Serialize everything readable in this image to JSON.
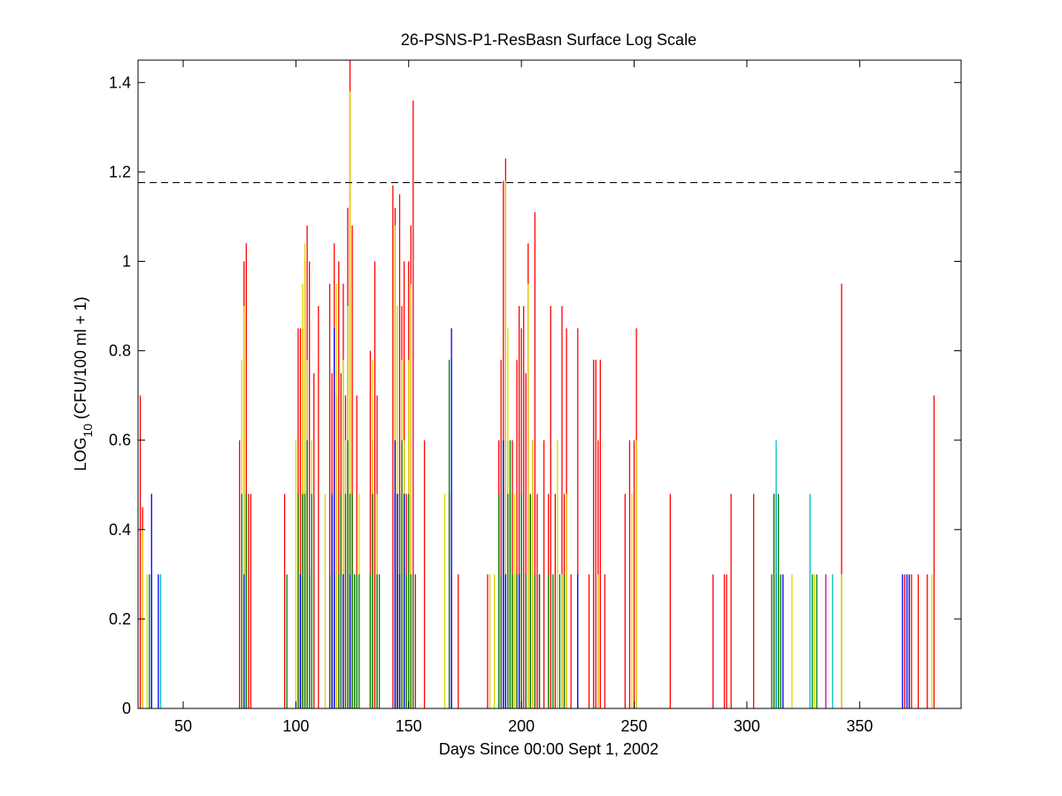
{
  "chart_data": {
    "type": "bar",
    "title": "26-PSNS-P1-ResBasn Surface Log Scale",
    "xlabel": "Days Since 00:00 Sept 1, 2002",
    "ylabel": {
      "prefix": "LOG",
      "sub": "10",
      "suffix": " (CFU/100 ml + 1)"
    },
    "xlim": [
      30,
      395
    ],
    "ylim": [
      0,
      1.45
    ],
    "xticks": [
      50,
      100,
      150,
      200,
      250,
      300,
      350
    ],
    "yticks": [
      0,
      0.2,
      0.4,
      0.6,
      0.8,
      1,
      1.2,
      1.4
    ],
    "ytick_labels": [
      "0",
      "0.2",
      "0.4",
      "0.6",
      "0.8",
      "1",
      "1.2",
      "1.4"
    ],
    "grid": false,
    "reference_line": {
      "y": 1.176,
      "style": "dashed"
    },
    "colors": {
      "red": "#ff0000",
      "yellow": "#d8d800",
      "green": "#008000",
      "blue": "#0000ff",
      "cyan": "#00bfbf",
      "magenta": "#bf00bf"
    },
    "series": [
      {
        "color": "red",
        "x": [
          31,
          32,
          75,
          77,
          78,
          79,
          80,
          95,
          101,
          102,
          103,
          104,
          105,
          106,
          108,
          110,
          115,
          116,
          117,
          118,
          119,
          120,
          121,
          122,
          123,
          124,
          125,
          126,
          127,
          133,
          134,
          135,
          136,
          143,
          144,
          145,
          146,
          147,
          148,
          149,
          150,
          151,
          152,
          153,
          157,
          168,
          172,
          185,
          190,
          191,
          192,
          193,
          194,
          195,
          196,
          197,
          198,
          199,
          200,
          201,
          202,
          203,
          204,
          205,
          206,
          207,
          208,
          210,
          212,
          213,
          215,
          218,
          219,
          220,
          222,
          225,
          230,
          232,
          233,
          234,
          235,
          237,
          246,
          248,
          250,
          251,
          266,
          285,
          290,
          291,
          293,
          303,
          312,
          342,
          370,
          373,
          376,
          380,
          383
        ],
        "y": [
          0.7,
          0.45,
          0.6,
          1.0,
          1.04,
          0.48,
          0.48,
          0.48,
          0.85,
          0.85,
          0.85,
          1.0,
          1.08,
          1.0,
          0.75,
          0.9,
          0.95,
          0.75,
          1.04,
          0.7,
          1.0,
          0.75,
          0.95,
          0.7,
          1.12,
          1.45,
          1.08,
          0.3,
          0.7,
          0.8,
          0.6,
          1.0,
          0.7,
          1.17,
          1.12,
          0.48,
          1.15,
          0.9,
          1.0,
          0.48,
          1.0,
          1.08,
          1.36,
          0.3,
          0.6,
          0.48,
          0.3,
          0.3,
          0.6,
          0.78,
          1.18,
          1.23,
          0.6,
          0.48,
          0.6,
          0.3,
          0.78,
          0.9,
          0.85,
          0.9,
          0.75,
          1.04,
          0.48,
          0.6,
          1.11,
          0.48,
          0.3,
          0.6,
          0.48,
          0.9,
          0.48,
          0.9,
          0.48,
          0.85,
          0.3,
          0.85,
          0.3,
          0.78,
          0.78,
          0.6,
          0.78,
          0.3,
          0.48,
          0.6,
          0.6,
          0.85,
          0.48,
          0.3,
          0.3,
          0.3,
          0.48,
          0.48,
          0.48,
          0.95,
          0.3,
          0.3,
          0.3,
          0.3,
          0.7
        ]
      },
      {
        "color": "yellow",
        "x": [
          32,
          34,
          76,
          77,
          100,
          103,
          104,
          105,
          107,
          113,
          118,
          121,
          122,
          123,
          124,
          125,
          128,
          134,
          136,
          144,
          145,
          147,
          148,
          150,
          151,
          166,
          169,
          186,
          188,
          193,
          194,
          197,
          203,
          205,
          212,
          216,
          218,
          220,
          234,
          249,
          251,
          320,
          328,
          330,
          342,
          382
        ],
        "y": [
          0.4,
          0.3,
          0.78,
          0.9,
          0.6,
          0.95,
          1.04,
          0.78,
          0.6,
          0.48,
          0.95,
          0.78,
          0.6,
          0.9,
          1.38,
          0.3,
          0.48,
          0.78,
          0.48,
          1.08,
          0.9,
          0.78,
          0.6,
          0.78,
          0.95,
          0.48,
          0.78,
          0.3,
          0.3,
          1.18,
          0.85,
          0.48,
          0.95,
          0.6,
          0.3,
          0.6,
          0.3,
          0.48,
          0.3,
          0.48,
          0.6,
          0.3,
          0.3,
          0.3,
          0.3,
          0.3
        ]
      },
      {
        "color": "green",
        "x": [
          35,
          36,
          76,
          78,
          96,
          101,
          102,
          103,
          104,
          105,
          106,
          107,
          115,
          116,
          117,
          119,
          120,
          121,
          122,
          123,
          124,
          125,
          126,
          127,
          128,
          133,
          134,
          136,
          137,
          144,
          145,
          146,
          147,
          148,
          149,
          150,
          151,
          152,
          168,
          169,
          190,
          191,
          192,
          194,
          195,
          196,
          198,
          200,
          202,
          204,
          206,
          208,
          212,
          214,
          217,
          219,
          311,
          312,
          313,
          314,
          315,
          329,
          331
        ],
        "y": [
          0.3,
          0.3,
          0.48,
          0.48,
          0.3,
          0.48,
          0.3,
          0.48,
          0.48,
          0.6,
          0.3,
          0.48,
          0.3,
          0.48,
          0.3,
          0.3,
          0.48,
          0.3,
          0.48,
          0.6,
          0.48,
          0.48,
          0.3,
          0.3,
          0.3,
          0.3,
          0.48,
          0.3,
          0.3,
          0.48,
          0.3,
          0.48,
          0.6,
          0.48,
          0.3,
          0.48,
          0.3,
          0.3,
          0.78,
          0.3,
          0.48,
          0.3,
          0.6,
          0.48,
          0.6,
          0.3,
          0.3,
          0.48,
          0.3,
          0.48,
          0.3,
          0.3,
          0.3,
          0.3,
          0.3,
          0.3,
          0.3,
          0.48,
          0.3,
          0.48,
          0.3,
          0.3,
          0.3
        ]
      },
      {
        "color": "blue",
        "x": [
          36,
          39,
          77,
          102,
          116,
          117,
          121,
          124,
          144,
          145,
          146,
          148,
          169,
          192,
          193,
          199,
          225,
          313,
          316,
          369,
          371,
          372
        ],
        "y": [
          0.48,
          0.3,
          0.3,
          0.3,
          0.48,
          0.85,
          0.3,
          0.3,
          0.6,
          0.48,
          0.3,
          0.48,
          0.85,
          0.6,
          0.3,
          0.3,
          0.3,
          0.48,
          0.3,
          0.3,
          0.3,
          0.3
        ]
      },
      {
        "color": "cyan",
        "x": [
          40,
          313,
          328,
          338
        ],
        "y": [
          0.3,
          0.6,
          0.48,
          0.3
        ]
      },
      {
        "color": "magenta",
        "x": [
          335
        ],
        "y": [
          0.3
        ]
      }
    ]
  }
}
